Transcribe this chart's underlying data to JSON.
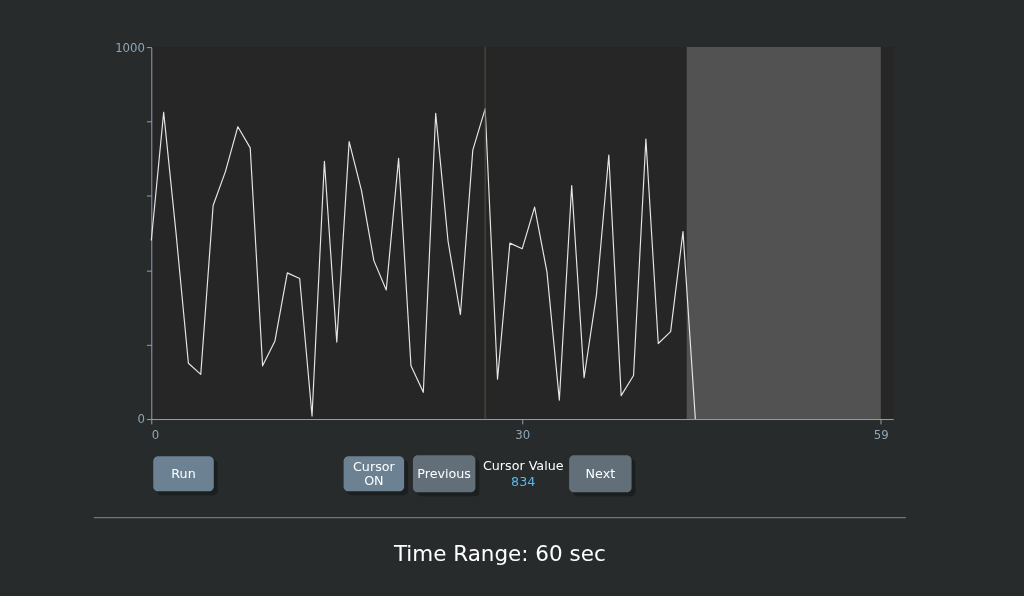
{
  "chart_data": {
    "type": "line",
    "x": [
      0,
      1,
      2,
      3,
      4,
      5,
      6,
      7,
      8,
      9,
      10,
      11,
      12,
      13,
      14,
      15,
      16,
      17,
      18,
      19,
      20,
      21,
      22,
      23,
      24,
      25,
      26,
      27,
      28,
      29,
      30,
      31,
      32,
      33,
      34,
      35,
      36,
      37,
      38,
      39,
      40,
      41,
      42,
      43,
      44
    ],
    "series": [
      {
        "color": "#e6e6e6",
        "values": [
          480,
          825,
          500,
          150,
          120,
          574,
          666,
          786,
          729,
          143,
          210,
          393,
          378,
          8,
          693,
          207,
          746,
          614,
          426,
          347,
          701,
          143,
          72,
          822,
          478,
          281,
          723,
          834,
          107,
          473,
          458,
          570,
          395,
          51,
          628,
          111,
          334,
          710,
          63,
          117,
          753,
          203,
          235,
          504,
          0
        ]
      }
    ],
    "xlim": [
      0,
      60
    ],
    "ylim": [
      0,
      1000
    ],
    "xticks": [
      0,
      30,
      59
    ],
    "yticks": [
      0,
      {
        "value": 200,
        "label": null
      },
      {
        "value": 400,
        "label": null
      },
      {
        "value": 600,
        "label": null
      },
      {
        "value": 800,
        "label": null
      },
      1000
    ],
    "ref_lines": [
      {
        "axis": "x",
        "value": 27,
        "color": "#55553f"
      }
    ],
    "bands": [
      {
        "axis": "x",
        "from": 43.3,
        "to": 59,
        "color": "#5a5a5a"
      }
    ],
    "annotations": [
      "Run",
      "Cursor ON",
      "Previous",
      "Cursor Value",
      "834",
      "Next",
      "Time Range: 60 sec"
    ]
  }
}
